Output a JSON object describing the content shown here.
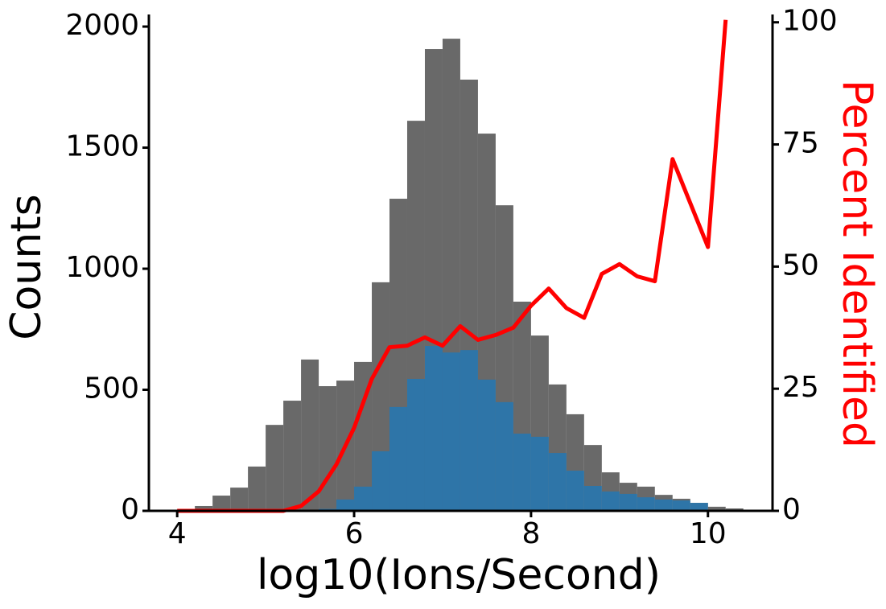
{
  "chart_data": {
    "type": "histogram",
    "x_label": "log10(Ions/Second)",
    "y_label": "Counts",
    "y2_label": "Percent Identified",
    "bins": [
      4.0,
      4.2,
      4.4,
      4.6,
      4.8,
      5.0,
      5.2,
      5.4,
      5.6,
      5.8,
      6.0,
      6.2,
      6.4,
      6.6,
      6.8,
      7.0,
      7.2,
      7.4,
      7.6,
      7.8,
      8.0,
      8.2,
      8.4,
      8.6,
      8.8,
      9.0,
      9.2,
      9.4,
      9.6,
      9.8,
      10.0,
      10.2,
      10.4
    ],
    "series": [
      {
        "color": "#696969",
        "values": [
          5,
          20,
          63,
          96,
          183,
          355,
          455,
          625,
          515,
          538,
          615,
          944,
          1289,
          1611,
          1907,
          1950,
          1781,
          1558,
          1262,
          864,
          724,
          522,
          399,
          272,
          159,
          116,
          100,
          66,
          50,
          33,
          17,
          10
        ]
      },
      {
        "color": "#2e75a8",
        "values": [
          0,
          0,
          0,
          0,
          0,
          0,
          0,
          1,
          8,
          47,
          100,
          246,
          429,
          545,
          681,
          654,
          664,
          542,
          449,
          319,
          306,
          239,
          166,
          103,
          80,
          70,
          56,
          47,
          43,
          33,
          0,
          0
        ]
      }
    ],
    "line": {
      "type": "line",
      "axis": "y2",
      "color": "#ff0000",
      "x": [
        4.0,
        4.2,
        4.4,
        4.6,
        4.8,
        5.0,
        5.2,
        5.4,
        5.6,
        5.8,
        6.0,
        6.2,
        6.4,
        6.6,
        6.8,
        7.0,
        7.2,
        7.4,
        7.6,
        7.8,
        8.0,
        8.2,
        8.4,
        8.6,
        8.8,
        9.0,
        9.2,
        9.4,
        9.6,
        9.8,
        10.0,
        10.2
      ],
      "values": [
        0,
        0,
        0,
        0,
        0,
        0,
        0,
        1,
        4,
        9.5,
        17,
        27,
        33.5,
        33.8,
        35.5,
        33.8,
        37.8,
        35,
        36,
        37.5,
        42,
        45.5,
        41.5,
        39.5,
        48.5,
        50.5,
        48,
        47,
        72,
        63,
        54,
        100.5
      ]
    },
    "xlim": [
      3.68,
      10.73
    ],
    "xticks": [
      4,
      6,
      8,
      10
    ],
    "ylim": [
      0,
      2050
    ],
    "yticks": [
      0,
      500,
      1000,
      1500,
      2000
    ],
    "y2lim": [
      0,
      101.6
    ],
    "y2ticks": [
      0,
      25,
      50,
      75,
      100
    ]
  }
}
